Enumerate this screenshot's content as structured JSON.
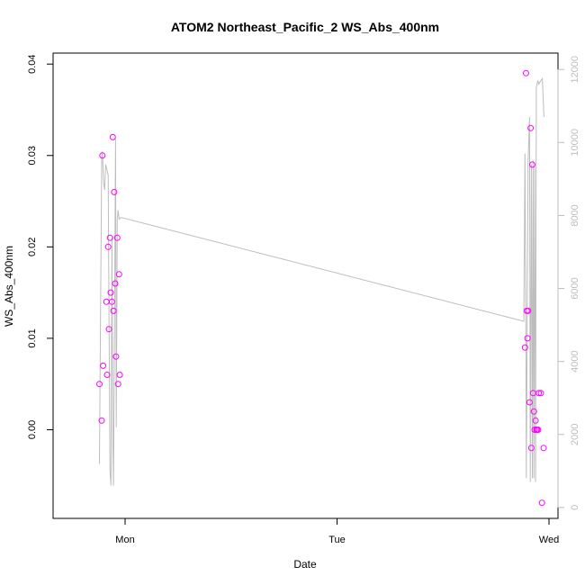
{
  "chart_data": {
    "type": "scatter",
    "title": "ATOM2 Northeast_Pacific_2 WS_Abs_400nm",
    "xlabel": "Date",
    "ylabel": "WS_Abs_400nm",
    "x_ticks": [
      "Mon",
      "Tue",
      "Wed"
    ],
    "y_ticks": [
      "0.00",
      "0.01",
      "0.02",
      "0.03",
      "0.04"
    ],
    "y2_ticks": [
      "0",
      "2000",
      "4000",
      "6000",
      "8000",
      "10000",
      "12000"
    ],
    "ylim": [
      -0.0097,
      0.0412
    ],
    "y2lim": [
      -300,
      12450
    ],
    "grid": false,
    "legend": "none",
    "colors": {
      "points": "#ff00ff",
      "line": "#bdbdbd",
      "axis": "#000000",
      "axis_right": "#bdbdbd"
    },
    "points_series": {
      "x": [
        "Sun 21:06",
        "Sun 21:21",
        "Sun 21:26",
        "Sun 21:31",
        "Sun 21:53",
        "Sun 21:58",
        "Sun 22:05",
        "Sun 22:10",
        "Sun 22:17",
        "Sun 22:22",
        "Sun 22:31",
        "Sun 22:36",
        "Sun 22:41",
        "Sun 22:46",
        "Sun 22:53",
        "Sun 22:58",
        "Sun 23:07",
        "Sun 23:12",
        "Sun 23:19",
        "Sun 23:24",
        "Tue 21:17",
        "Tue 21:24",
        "Tue 21:29",
        "Tue 21:34",
        "Tue 21:38",
        "Tue 21:48",
        "Tue 21:55",
        "Tue 22:00",
        "Tue 22:07",
        "Tue 22:12",
        "Tue 22:17",
        "Tue 22:22",
        "Tue 22:29",
        "Tue 22:34",
        "Tue 22:39",
        "Tue 22:46",
        "Tue 22:51",
        "Tue 23:05",
        "Tue 23:12",
        "Tue 23:24"
      ],
      "y": [
        0.005,
        0.001,
        0.03,
        0.007,
        0.014,
        0.006,
        0.02,
        0.011,
        0.021,
        0.015,
        0.014,
        0.032,
        0.013,
        0.026,
        0.016,
        0.008,
        0.021,
        0.005,
        0.017,
        0.006,
        0.009,
        0.039,
        0.013,
        0.01,
        0.013,
        0.003,
        0.033,
        -0.002,
        0.029,
        0.004,
        0.002,
        0.0,
        0.001,
        0.0,
        0.0,
        0.0,
        0.004,
        0.004,
        -0.008,
        -0.002
      ]
    },
    "line_series": {
      "x": [
        "Sun 21:06",
        "Sun 21:21",
        "Sun 21:26",
        "Sun 21:34",
        "Sun 21:41",
        "Sun 21:48",
        "Sun 22:05",
        "Sun 22:10",
        "Sun 22:17",
        "Sun 22:24",
        "Sun 22:31",
        "Sun 22:36",
        "Sun 22:41",
        "Sun 22:48",
        "Sun 22:55",
        "Sun 23:00",
        "Sun 23:07",
        "Sun 23:12",
        "Sun 23:19",
        "Sun 23:31",
        "Tue 21:09",
        "Tue 21:17",
        "Tue 21:22",
        "Tue 21:26",
        "Tue 21:38",
        "Tue 21:48",
        "Tue 21:53",
        "Tue 22:00",
        "Tue 22:07",
        "Tue 22:12",
        "Tue 22:17",
        "Tue 22:22",
        "Tue 22:29",
        "Tue 22:34",
        "Tue 22:39",
        "Tue 22:44",
        "Tue 22:51",
        "Tue 23:05",
        "Tue 23:15",
        "Tue 23:26"
      ],
      "y": [
        1200,
        9600,
        9750,
        8900,
        8700,
        9400,
        9100,
        5800,
        1000,
        600,
        7400,
        2000,
        600,
        4800,
        10100,
        2200,
        7900,
        8150,
        7900,
        7950,
        5100,
        9700,
        5500,
        800,
        9500,
        10700,
        700,
        9400,
        800,
        9500,
        800,
        9400,
        700,
        11500,
        11600,
        11700,
        11600,
        11700,
        11750,
        10700
      ]
    }
  }
}
